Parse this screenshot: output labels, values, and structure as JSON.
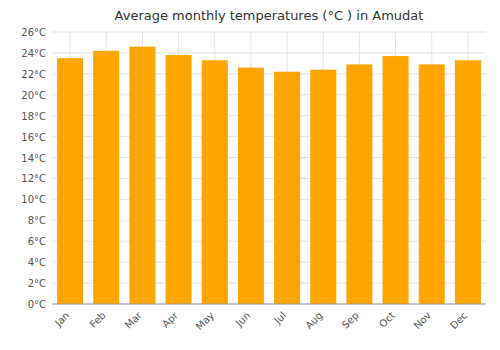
{
  "chart_data": {
    "type": "bar",
    "title": "Average monthly temperatures (°C ) in Amudat",
    "categories": [
      "Jan",
      "Feb",
      "Mar",
      "Apr",
      "May",
      "Jun",
      "Jul",
      "Aug",
      "Sep",
      "Oct",
      "Nov",
      "Dec"
    ],
    "values": [
      23.5,
      24.2,
      24.6,
      23.8,
      23.3,
      22.6,
      22.2,
      22.4,
      22.9,
      23.7,
      22.9,
      23.3
    ],
    "color": "#FFA500",
    "ylim": [
      0,
      26
    ],
    "yticks": [
      {
        "value": 0,
        "label": "0°C"
      },
      {
        "value": 2,
        "label": "2°C"
      },
      {
        "value": 4,
        "label": "4°C"
      },
      {
        "value": 6,
        "label": "6°C"
      },
      {
        "value": 8,
        "label": "8°C"
      },
      {
        "value": 10,
        "label": "10°C"
      },
      {
        "value": 12,
        "label": "12°C"
      },
      {
        "value": 14,
        "label": "14°C"
      },
      {
        "value": 16,
        "label": "16°C"
      },
      {
        "value": 18,
        "label": "18°C"
      },
      {
        "value": 20,
        "label": "20°C"
      },
      {
        "value": 22,
        "label": "22°C"
      },
      {
        "value": 24,
        "label": "24°C"
      },
      {
        "value": 26,
        "label": "26°C"
      }
    ],
    "grid": true
  }
}
